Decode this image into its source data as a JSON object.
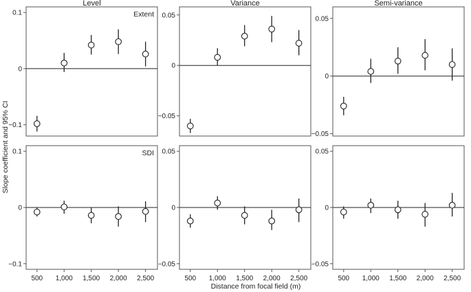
{
  "figure": {
    "ylabel": "Slope coefficient and 95% CI",
    "xlabel": "Distance from focal field (m)"
  },
  "chart_data": [
    {
      "type": "scatter",
      "row": 0,
      "col": 0,
      "title": "Level",
      "label": "Extent",
      "x": [
        500,
        1000,
        1500,
        2000,
        2500
      ],
      "y": [
        -0.098,
        0.01,
        0.042,
        0.048,
        0.026
      ],
      "ci_low": [
        -0.112,
        -0.006,
        0.025,
        0.026,
        0.004
      ],
      "ci_high": [
        -0.084,
        0.028,
        0.06,
        0.07,
        0.048
      ],
      "xlim": [
        300,
        2720
      ],
      "ylim": [
        -0.12,
        0.11
      ],
      "yticks": [
        -0.1,
        0,
        0.1
      ],
      "ytick_labels": [
        "−0.1",
        "0",
        "0.1"
      ],
      "xticks": [],
      "xtick_labels": []
    },
    {
      "type": "scatter",
      "row": 0,
      "col": 1,
      "title": "Variance",
      "label": "",
      "x": [
        500,
        1000,
        1500,
        2000,
        2500
      ],
      "y": [
        -0.06,
        0.008,
        0.029,
        0.036,
        0.022
      ],
      "ci_low": [
        -0.067,
        0.0,
        0.019,
        0.023,
        0.01
      ],
      "ci_high": [
        -0.053,
        0.017,
        0.04,
        0.049,
        0.035
      ],
      "xlim": [
        300,
        2720
      ],
      "ylim": [
        -0.07,
        0.058
      ],
      "yticks": [
        -0.05,
        0,
        0.05
      ],
      "ytick_labels": [
        "−0.05",
        "0",
        "0.05"
      ],
      "xticks": [],
      "xtick_labels": []
    },
    {
      "type": "scatter",
      "row": 0,
      "col": 2,
      "title": "Semi-variance",
      "label": "",
      "x": [
        500,
        1000,
        1500,
        2000,
        2500
      ],
      "y": [
        -0.026,
        0.004,
        0.013,
        0.018,
        0.01
      ],
      "ci_low": [
        -0.034,
        -0.006,
        0.002,
        0.005,
        -0.004
      ],
      "ci_high": [
        -0.018,
        0.015,
        0.025,
        0.032,
        0.024
      ],
      "xlim": [
        300,
        2720
      ],
      "ylim": [
        -0.052,
        0.06
      ],
      "yticks": [
        -0.05,
        0,
        0.05
      ],
      "ytick_labels": [
        "−0.05",
        "0",
        "0.05"
      ],
      "xticks": [],
      "xtick_labels": []
    },
    {
      "type": "scatter",
      "row": 1,
      "col": 0,
      "title": "",
      "label": "SDI",
      "x": [
        500,
        1000,
        1500,
        2000,
        2500
      ],
      "y": [
        -0.008,
        0.001,
        -0.014,
        -0.016,
        -0.007
      ],
      "ci_low": [
        -0.016,
        -0.011,
        -0.028,
        -0.034,
        -0.026
      ],
      "ci_high": [
        0.0,
        0.012,
        0.0,
        0.002,
        0.011
      ],
      "xlim": [
        300,
        2720
      ],
      "ylim": [
        -0.11,
        0.11
      ],
      "yticks": [
        -0.1,
        0,
        0.1
      ],
      "ytick_labels": [
        "−0.1",
        "0",
        "0.1"
      ],
      "xticks": [
        500,
        1000,
        1500,
        2000,
        2500
      ],
      "xtick_labels": [
        "500",
        "1,000",
        "1,500",
        "2,000",
        "2,500"
      ]
    },
    {
      "type": "scatter",
      "row": 1,
      "col": 1,
      "title": "",
      "label": "",
      "x": [
        500,
        1000,
        1500,
        2000,
        2500
      ],
      "y": [
        -0.012,
        0.004,
        -0.007,
        -0.012,
        -0.002
      ],
      "ci_low": [
        -0.018,
        -0.002,
        -0.015,
        -0.02,
        -0.013
      ],
      "ci_high": [
        -0.006,
        0.01,
        0.001,
        -0.002,
        0.008
      ],
      "xlim": [
        300,
        2720
      ],
      "ylim": [
        -0.055,
        0.055
      ],
      "yticks": [
        -0.05,
        0,
        0.05
      ],
      "ytick_labels": [
        "−0.05",
        "0",
        "0.05"
      ],
      "xticks": [
        500,
        1000,
        1500,
        2000,
        2500
      ],
      "xtick_labels": [
        "500",
        "1,000",
        "1,500",
        "2,000",
        "2,500"
      ]
    },
    {
      "type": "scatter",
      "row": 1,
      "col": 2,
      "title": "",
      "label": "",
      "x": [
        500,
        1000,
        1500,
        2000,
        2500
      ],
      "y": [
        -0.004,
        0.002,
        -0.002,
        -0.006,
        0.002
      ],
      "ci_low": [
        -0.01,
        -0.005,
        -0.01,
        -0.017,
        -0.008
      ],
      "ci_high": [
        0.001,
        0.008,
        0.006,
        0.004,
        0.013
      ],
      "xlim": [
        300,
        2720
      ],
      "ylim": [
        -0.055,
        0.055
      ],
      "yticks": [
        -0.05,
        0,
        0.05
      ],
      "ytick_labels": [
        "−0.05",
        "0",
        "0.05"
      ],
      "xticks": [
        500,
        1000,
        1500,
        2000,
        2500
      ],
      "xtick_labels": [
        "500",
        "1,000",
        "1,500",
        "2,000",
        "2,500"
      ]
    }
  ]
}
